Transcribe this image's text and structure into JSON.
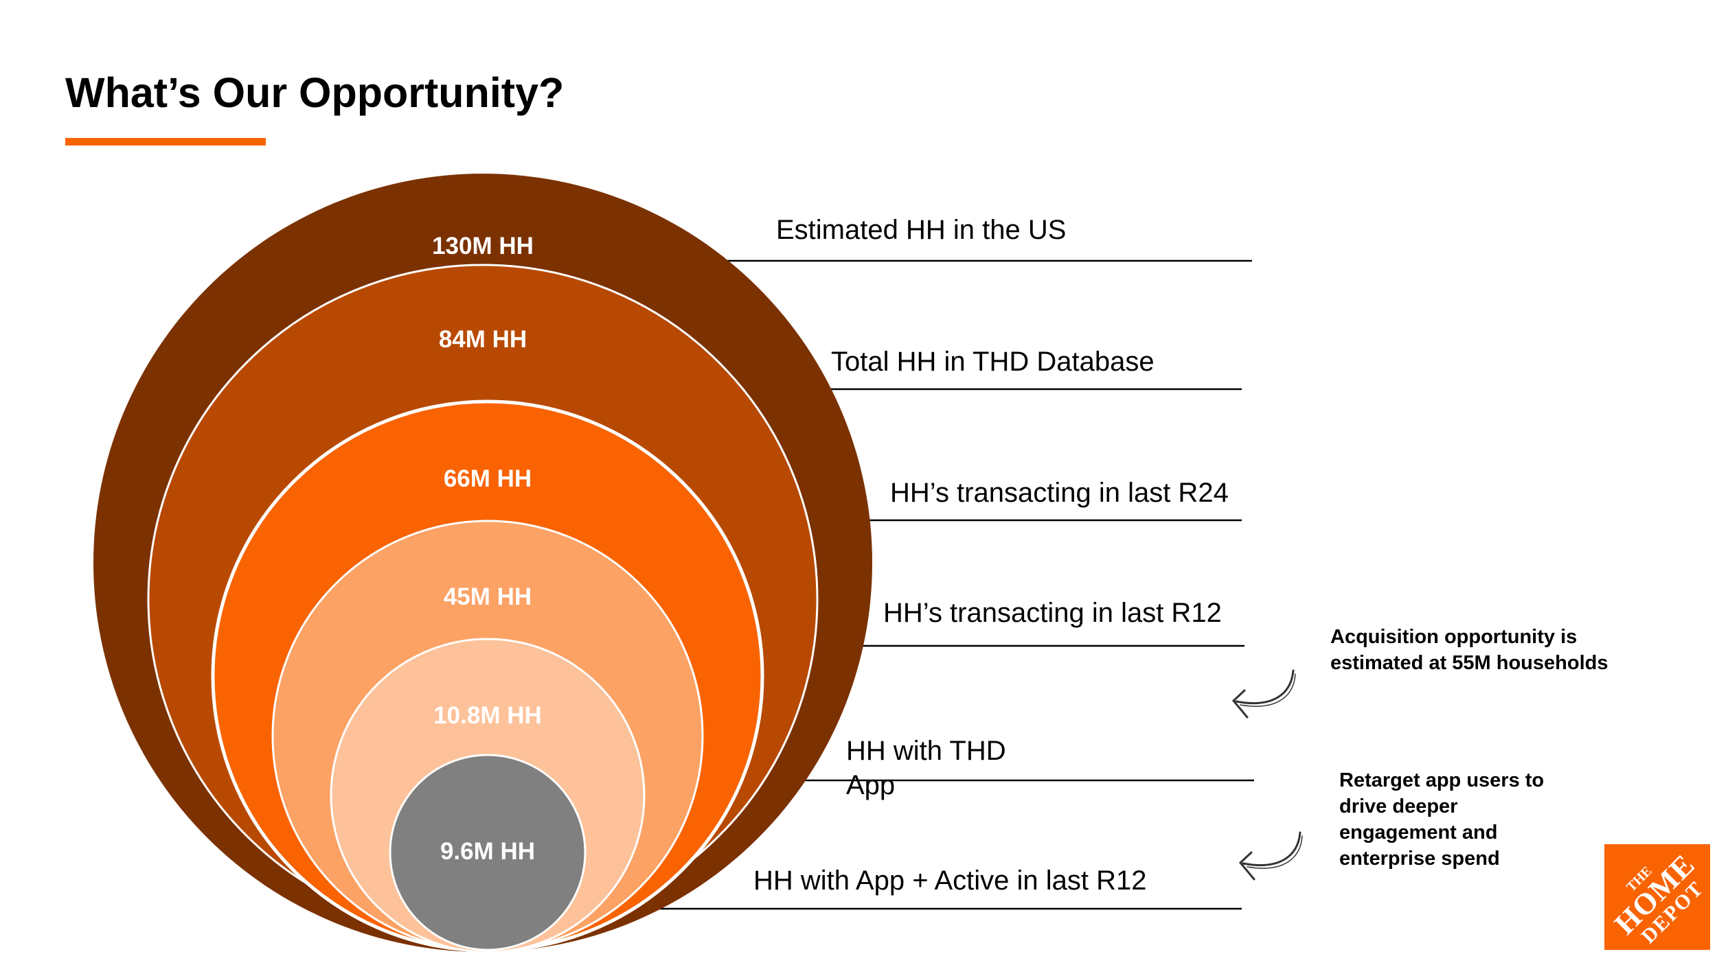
{
  "slide": {
    "title": "What’s Our Opportunity?"
  },
  "colors": {
    "accent": "#f96302",
    "ring1": "#7b3100",
    "ring2": "#b84902",
    "ring3": "#f96302",
    "ring4": "#fca265",
    "ring5": "#fdc29a",
    "core": "#808080"
  },
  "circles": [
    {
      "value": "130M HH",
      "description": "Estimated HH in the US"
    },
    {
      "value": "84M HH",
      "description": "Total HH in THD Database"
    },
    {
      "value": "66M HH",
      "description": "HH’s transacting in last R24"
    },
    {
      "value": "45M HH",
      "description": "HH’s transacting in last R12"
    },
    {
      "value": "10.8M HH",
      "description": "HH with THD App"
    },
    {
      "value": "9.6M HH",
      "description": "HH with App + Active in last R12"
    }
  ],
  "notes": [
    {
      "text": "Acquisition opportunity is estimated at 55M households",
      "icon": "curved-arrow-icon"
    },
    {
      "text": "Retarget app users to drive deeper engagement and enterprise spend",
      "icon": "curved-arrow-icon"
    }
  ],
  "logo": {
    "line1": "THE",
    "line2": "HOME",
    "line3": "DEPOT"
  }
}
